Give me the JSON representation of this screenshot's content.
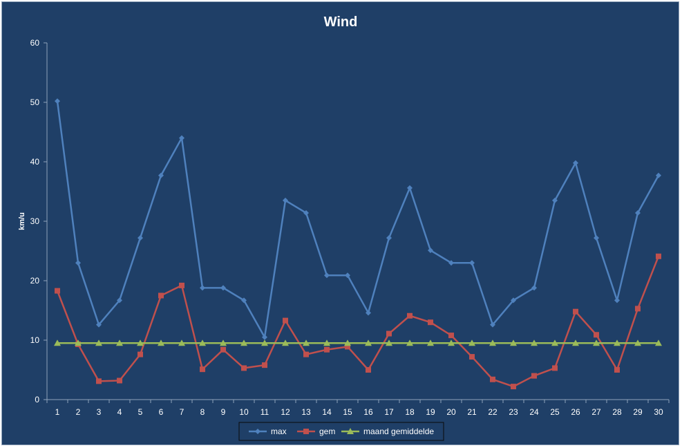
{
  "chart_data": {
    "type": "line",
    "title": "Wind",
    "xlabel": "",
    "ylabel": "km/u",
    "ylim": [
      0,
      60
    ],
    "yticks": [
      0,
      10,
      20,
      30,
      40,
      50,
      60
    ],
    "categories": [
      "1",
      "2",
      "3",
      "4",
      "5",
      "6",
      "7",
      "8",
      "9",
      "10",
      "11",
      "12",
      "13",
      "14",
      "15",
      "16",
      "17",
      "18",
      "19",
      "20",
      "21",
      "22",
      "23",
      "24",
      "25",
      "26",
      "27",
      "28",
      "29",
      "30"
    ],
    "grid": false,
    "legend_position": "bottom",
    "colors": {
      "background": "#1f3f67",
      "axis": "#8fa3bb",
      "text": "#ffffff"
    },
    "series": [
      {
        "name": "max",
        "color": "#4f81bd",
        "marker": "diamond",
        "values": [
          50.2,
          23.0,
          12.6,
          16.7,
          27.2,
          37.7,
          44.0,
          18.8,
          18.8,
          16.7,
          10.5,
          33.5,
          31.4,
          20.9,
          20.9,
          14.6,
          27.2,
          35.6,
          25.1,
          23.0,
          23.0,
          12.6,
          16.7,
          18.8,
          33.5,
          39.8,
          27.2,
          16.7,
          31.4,
          37.7
        ]
      },
      {
        "name": "gem",
        "color": "#c0504d",
        "marker": "square",
        "values": [
          18.3,
          9.3,
          3.1,
          3.2,
          7.6,
          17.5,
          19.2,
          5.1,
          8.4,
          5.3,
          5.8,
          13.3,
          7.6,
          8.4,
          8.9,
          5.0,
          11.1,
          14.1,
          13.0,
          10.8,
          7.2,
          3.4,
          2.2,
          4.0,
          5.3,
          14.8,
          10.9,
          5.0,
          15.3,
          24.1
        ]
      },
      {
        "name": "maand gemiddelde",
        "color": "#9bbb59",
        "marker": "triangle",
        "values": [
          9.5,
          9.5,
          9.5,
          9.5,
          9.5,
          9.5,
          9.5,
          9.5,
          9.5,
          9.5,
          9.5,
          9.5,
          9.5,
          9.5,
          9.5,
          9.5,
          9.5,
          9.5,
          9.5,
          9.5,
          9.5,
          9.5,
          9.5,
          9.5,
          9.5,
          9.5,
          9.5,
          9.5,
          9.5,
          9.5
        ]
      }
    ]
  }
}
